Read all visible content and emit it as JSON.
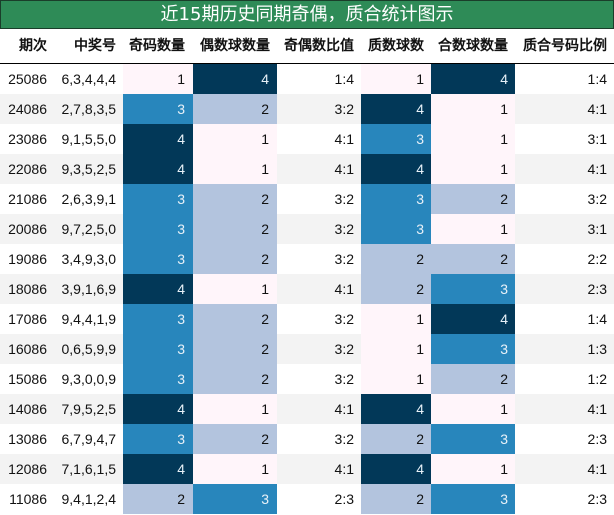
{
  "title": "近15期历史同期奇偶，质合统计图示",
  "headers": [
    "期次",
    "中奖号",
    "奇码数量",
    "偶数球数量",
    "奇偶数比值",
    "质数球数",
    "合数球数量",
    "质合号码比例"
  ],
  "colors": {
    "title_bg": "#2e8b57",
    "level_1": "#fff5fa",
    "level_2": "#b3c4de",
    "level_3": "#2886bc",
    "level_4": "#023858",
    "row_alt": "#f3f3f3"
  },
  "rows": [
    {
      "period": "25086",
      "numbers": "6,3,4,4,4",
      "odd": "1",
      "even": "4",
      "odd_even_ratio": "1:4",
      "prime": "1",
      "composite": "4",
      "prime_composite_ratio": "1:4"
    },
    {
      "period": "24086",
      "numbers": "2,7,8,3,5",
      "odd": "3",
      "even": "2",
      "odd_even_ratio": "3:2",
      "prime": "4",
      "composite": "1",
      "prime_composite_ratio": "4:1"
    },
    {
      "period": "23086",
      "numbers": "9,1,5,5,0",
      "odd": "4",
      "even": "1",
      "odd_even_ratio": "4:1",
      "prime": "3",
      "composite": "1",
      "prime_composite_ratio": "3:1"
    },
    {
      "period": "22086",
      "numbers": "9,3,5,2,5",
      "odd": "4",
      "even": "1",
      "odd_even_ratio": "4:1",
      "prime": "4",
      "composite": "1",
      "prime_composite_ratio": "4:1"
    },
    {
      "period": "21086",
      "numbers": "2,6,3,9,1",
      "odd": "3",
      "even": "2",
      "odd_even_ratio": "3:2",
      "prime": "3",
      "composite": "2",
      "prime_composite_ratio": "3:2"
    },
    {
      "period": "20086",
      "numbers": "9,7,2,5,0",
      "odd": "3",
      "even": "2",
      "odd_even_ratio": "3:2",
      "prime": "3",
      "composite": "1",
      "prime_composite_ratio": "3:1"
    },
    {
      "period": "19086",
      "numbers": "3,4,9,3,0",
      "odd": "3",
      "even": "2",
      "odd_even_ratio": "3:2",
      "prime": "2",
      "composite": "2",
      "prime_composite_ratio": "2:2"
    },
    {
      "period": "18086",
      "numbers": "3,9,1,6,9",
      "odd": "4",
      "even": "1",
      "odd_even_ratio": "4:1",
      "prime": "2",
      "composite": "3",
      "prime_composite_ratio": "2:3"
    },
    {
      "period": "17086",
      "numbers": "9,4,4,1,9",
      "odd": "3",
      "even": "2",
      "odd_even_ratio": "3:2",
      "prime": "1",
      "composite": "4",
      "prime_composite_ratio": "1:4"
    },
    {
      "period": "16086",
      "numbers": "0,6,5,9,9",
      "odd": "3",
      "even": "2",
      "odd_even_ratio": "3:2",
      "prime": "1",
      "composite": "3",
      "prime_composite_ratio": "1:3"
    },
    {
      "period": "15086",
      "numbers": "9,3,0,0,9",
      "odd": "3",
      "even": "2",
      "odd_even_ratio": "3:2",
      "prime": "1",
      "composite": "2",
      "prime_composite_ratio": "1:2"
    },
    {
      "period": "14086",
      "numbers": "7,9,5,2,5",
      "odd": "4",
      "even": "1",
      "odd_even_ratio": "4:1",
      "prime": "4",
      "composite": "1",
      "prime_composite_ratio": "4:1"
    },
    {
      "period": "13086",
      "numbers": "6,7,9,4,7",
      "odd": "3",
      "even": "2",
      "odd_even_ratio": "3:2",
      "prime": "2",
      "composite": "3",
      "prime_composite_ratio": "2:3"
    },
    {
      "period": "12086",
      "numbers": "7,1,6,1,5",
      "odd": "4",
      "even": "1",
      "odd_even_ratio": "4:1",
      "prime": "4",
      "composite": "1",
      "prime_composite_ratio": "4:1"
    },
    {
      "period": "11086",
      "numbers": "9,4,1,2,4",
      "odd": "2",
      "even": "3",
      "odd_even_ratio": "2:3",
      "prime": "2",
      "composite": "3",
      "prime_composite_ratio": "2:3"
    }
  ],
  "chart_data": {
    "type": "table",
    "title": "近15期历史同期奇偶，质合统计图示",
    "columns": [
      "期次",
      "中奖号",
      "奇码数量",
      "偶数球数量",
      "奇偶数比值",
      "质数球数",
      "合数球数量",
      "质合号码比例"
    ],
    "categories": [
      "25086",
      "24086",
      "23086",
      "22086",
      "21086",
      "20086",
      "19086",
      "18086",
      "17086",
      "16086",
      "15086",
      "14086",
      "13086",
      "12086",
      "11086"
    ],
    "series": [
      {
        "name": "奇码数量",
        "values": [
          1,
          3,
          4,
          4,
          3,
          3,
          3,
          4,
          3,
          3,
          3,
          4,
          3,
          4,
          2
        ]
      },
      {
        "name": "偶数球数量",
        "values": [
          4,
          2,
          1,
          1,
          2,
          2,
          2,
          1,
          2,
          2,
          2,
          1,
          2,
          1,
          3
        ]
      },
      {
        "name": "质数球数",
        "values": [
          1,
          4,
          3,
          4,
          3,
          3,
          2,
          2,
          1,
          1,
          1,
          4,
          2,
          4,
          2
        ]
      },
      {
        "name": "合数球数量",
        "values": [
          4,
          1,
          1,
          1,
          2,
          1,
          2,
          3,
          4,
          3,
          2,
          1,
          3,
          1,
          3
        ]
      }
    ],
    "numbers": [
      "6,3,4,4,4",
      "2,7,8,3,5",
      "9,1,5,5,0",
      "9,3,5,2,5",
      "2,6,3,9,1",
      "9,7,2,5,0",
      "3,4,9,3,0",
      "3,9,1,6,9",
      "9,4,4,1,9",
      "0,6,5,9,9",
      "9,3,0,0,9",
      "7,9,5,2,5",
      "6,7,9,4,7",
      "7,1,6,1,5",
      "9,4,1,2,4"
    ],
    "odd_even_ratio": [
      "1:4",
      "3:2",
      "4:1",
      "4:1",
      "3:2",
      "3:2",
      "3:2",
      "4:1",
      "3:2",
      "3:2",
      "3:2",
      "4:1",
      "3:2",
      "4:1",
      "2:3"
    ],
    "prime_composite_ratio": [
      "1:4",
      "4:1",
      "3:1",
      "4:1",
      "3:2",
      "3:1",
      "2:2",
      "2:3",
      "1:4",
      "1:3",
      "1:2",
      "4:1",
      "2:3",
      "4:1",
      "2:3"
    ]
  }
}
